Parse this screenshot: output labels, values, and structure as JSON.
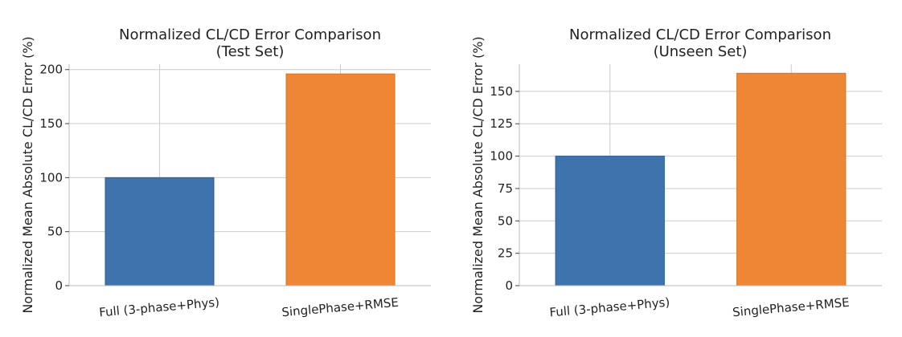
{
  "chart_data": [
    {
      "type": "bar",
      "title": [
        "Normalized CL/CD Error Comparison",
        "(Test Set)"
      ],
      "xlabel": "",
      "ylabel": "Normalized Mean Absolute CL/CD Error (%)",
      "categories": [
        "Full (3-phase+Phys)",
        "SinglePhase+RMSE"
      ],
      "values": [
        100,
        196
      ],
      "colors": [
        "#3f73ad",
        "#ef8636"
      ],
      "ylim": [
        0,
        205
      ],
      "yticks": [
        0,
        50,
        100,
        150,
        200
      ],
      "grid": true
    },
    {
      "type": "bar",
      "title": [
        "Normalized CL/CD Error Comparison",
        "(Unseen Set)"
      ],
      "xlabel": "",
      "ylabel": "Normalized Mean Absolute CL/CD Error (%)",
      "categories": [
        "Full (3-phase+Phys)",
        "SinglePhase+RMSE"
      ],
      "values": [
        100,
        164
      ],
      "colors": [
        "#3f73ad",
        "#ef8636"
      ],
      "ylim": [
        0,
        171
      ],
      "yticks": [
        0,
        25,
        50,
        75,
        100,
        125,
        150
      ],
      "grid": true
    }
  ]
}
